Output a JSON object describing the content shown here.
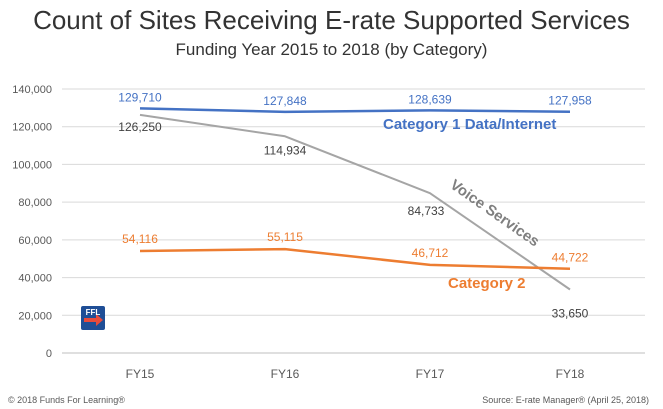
{
  "header": {
    "title": "Count of Sites Receiving E-rate Supported Services",
    "subtitle": "Funding Year 2015 to 2018 (by Category)"
  },
  "footer": {
    "copyright": "© 2018 Funds For Learning®",
    "source": "Source:  E-rate Manager® (April 25, 2018)"
  },
  "logo": {
    "text": "FFL"
  },
  "chart_data": {
    "type": "line",
    "title": "Count of Sites Receiving E-rate Supported Services",
    "subtitle": "Funding Year 2015 to 2018 (by Category)",
    "categories": [
      "FY15",
      "FY16",
      "FY17",
      "FY18"
    ],
    "ylim": [
      0,
      140000
    ],
    "y_ticks": [
      0,
      20000,
      40000,
      60000,
      80000,
      100000,
      120000,
      140000
    ],
    "y_tick_labels": [
      "0",
      "20,000",
      "40,000",
      "60,000",
      "80,000",
      "100,000",
      "120,000",
      "140,000"
    ],
    "grid": "horizontal",
    "series": [
      {
        "name": "Category 1 Data/Internet",
        "values": [
          129710,
          127848,
          128639,
          127958
        ],
        "labels": [
          "129,710",
          "127,848",
          "128,639",
          "127,958"
        ],
        "color": "#4472C4"
      },
      {
        "name": "Voice Services",
        "values": [
          126250,
          114934,
          84733,
          33650
        ],
        "labels": [
          "126,250",
          "114,934",
          "84,733",
          "33,650"
        ],
        "color": "#A5A5A5"
      },
      {
        "name": "Category 2",
        "values": [
          54116,
          55115,
          46712,
          44722
        ],
        "labels": [
          "54,116",
          "55,115",
          "46,712",
          "44,722"
        ],
        "color": "#ED7D31"
      }
    ]
  }
}
